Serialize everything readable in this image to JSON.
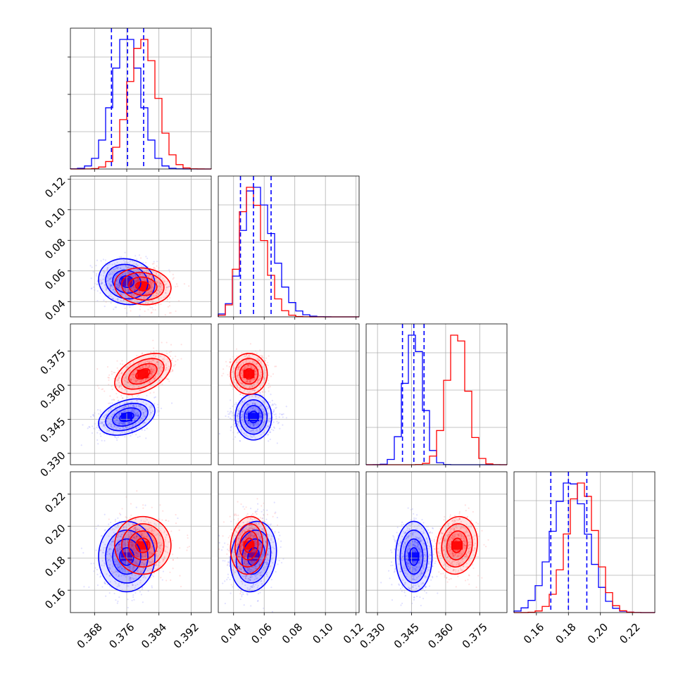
{
  "chart_data": {
    "type": "corner",
    "title": "",
    "grid": true,
    "parameters": [
      {
        "range": [
          0.362,
          0.397
        ],
        "ticks": [
          0.368,
          0.376,
          0.384,
          0.392
        ],
        "tick_labels": [
          "0.368",
          "0.376",
          "0.384",
          "0.392"
        ]
      },
      {
        "range": [
          0.03,
          0.122
        ],
        "ticks": [
          0.04,
          0.06,
          0.08,
          0.1,
          0.12
        ],
        "tick_labels": [
          "0.04",
          "0.06",
          "0.08",
          "0.10",
          "0.12"
        ]
      },
      {
        "range": [
          0.325,
          0.387
        ],
        "ticks": [
          0.33,
          0.345,
          0.36,
          0.375
        ],
        "tick_labels": [
          "0.330",
          "0.345",
          "0.360",
          "0.375"
        ]
      },
      {
        "range": [
          0.146,
          0.234
        ],
        "ticks": [
          0.16,
          0.18,
          0.2,
          0.22
        ],
        "tick_labels": [
          "0.16",
          "0.18",
          "0.20",
          "0.22"
        ]
      }
    ],
    "series": [
      {
        "color": "#0000ff",
        "means": [
          0.376,
          0.053,
          0.346,
          0.181
        ],
        "stds": [
          0.0035,
          0.0075,
          0.004,
          0.011
        ],
        "correlations": {
          "0-1": -0.1,
          "0-2": 0.35,
          "0-3": 0.0,
          "1-2": 0.0,
          "1-3": 0.15,
          "2-3": 0.0
        },
        "quantiles": [
          [
            0.3722,
            0.3762,
            0.3802
          ],
          [
            0.0445,
            0.053,
            0.0645
          ],
          [
            0.341,
            0.346,
            0.3505
          ],
          [
            0.169,
            0.18,
            0.1915
          ]
        ]
      },
      {
        "color": "#ff0000",
        "means": [
          0.38,
          0.05,
          0.365,
          0.188
        ],
        "stds": [
          0.0035,
          0.006,
          0.0045,
          0.009
        ],
        "correlations": {
          "0-1": -0.1,
          "0-2": 0.45,
          "0-3": 0.0,
          "1-2": 0.0,
          "1-3": 0.1,
          "2-3": 0.1
        },
        "quantiles": []
      }
    ],
    "contour_levels_sigma": [
      0.5,
      1.0,
      1.5,
      2.0
    ],
    "histogram_bins": 20
  }
}
